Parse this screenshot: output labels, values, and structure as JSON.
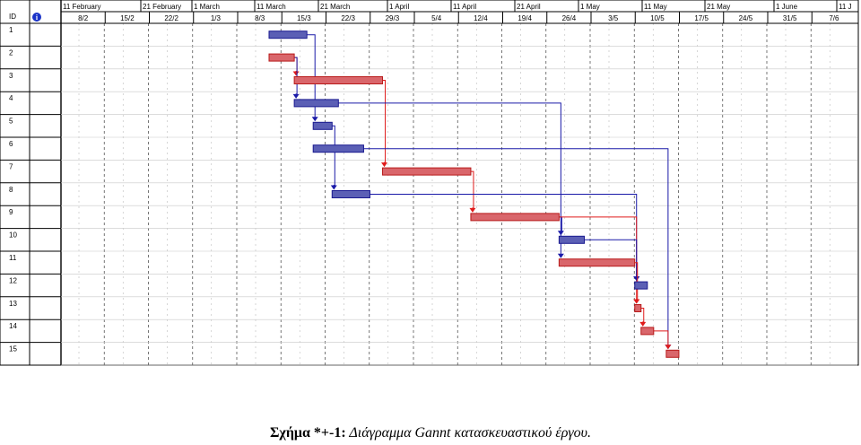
{
  "chart_data": {
    "type": "gantt",
    "columns": {
      "id": "ID",
      "info_icon": "info-icon"
    },
    "top_tier": [
      "11 February",
      "21 February",
      "1 March",
      "11 March",
      "21 March",
      "1 April",
      "11 April",
      "21 April",
      "1 May",
      "11 May",
      "21 May",
      "1 June",
      "11 J"
    ],
    "bottom_tier": [
      "8/2",
      "15/2",
      "22/2",
      "1/3",
      "8/3",
      "15/3",
      "22/3",
      "29/3",
      "5/4",
      "12/4",
      "19/4",
      "26/4",
      "3/5",
      "10/5",
      "17/5",
      "24/5",
      "31/5",
      "7/6"
    ],
    "rows": [
      "1",
      "2",
      "3",
      "4",
      "5",
      "6",
      "7",
      "8",
      "9",
      "10",
      "11",
      "12",
      "13",
      "14",
      "15"
    ],
    "tasks": [
      {
        "id": 1,
        "start": "2004-03-08",
        "end": "2004-03-14",
        "critical": false
      },
      {
        "id": 2,
        "start": "2004-03-08",
        "end": "2004-03-12",
        "critical": true
      },
      {
        "id": 3,
        "start": "2004-03-12",
        "end": "2004-03-26",
        "critical": true
      },
      {
        "id": 4,
        "start": "2004-03-12",
        "end": "2004-03-19",
        "critical": false
      },
      {
        "id": 5,
        "start": "2004-03-15",
        "end": "2004-03-18",
        "critical": false
      },
      {
        "id": 6,
        "start": "2004-03-15",
        "end": "2004-03-23",
        "critical": false
      },
      {
        "id": 7,
        "start": "2004-03-26",
        "end": "2004-04-09",
        "critical": true
      },
      {
        "id": 8,
        "start": "2004-03-18",
        "end": "2004-03-24",
        "critical": false
      },
      {
        "id": 9,
        "start": "2004-04-09",
        "end": "2004-04-23",
        "critical": true
      },
      {
        "id": 10,
        "start": "2004-04-23",
        "end": "2004-04-27",
        "critical": false
      },
      {
        "id": 11,
        "start": "2004-04-23",
        "end": "2004-05-05",
        "critical": true
      },
      {
        "id": 12,
        "start": "2004-05-05",
        "end": "2004-05-07",
        "critical": false
      },
      {
        "id": 13,
        "start": "2004-05-05",
        "end": "2004-05-06",
        "critical": true
      },
      {
        "id": 14,
        "start": "2004-05-06",
        "end": "2004-05-08",
        "critical": true
      },
      {
        "id": 15,
        "start": "2004-05-10",
        "end": "2004-05-12",
        "critical": true
      }
    ],
    "links": [
      [
        1,
        5
      ],
      [
        2,
        3
      ],
      [
        2,
        4
      ],
      [
        3,
        7
      ],
      [
        4,
        11
      ],
      [
        5,
        8
      ],
      [
        6,
        15
      ],
      [
        7,
        9
      ],
      [
        8,
        12
      ],
      [
        9,
        10
      ],
      [
        9,
        13
      ],
      [
        10,
        12
      ],
      [
        11,
        13
      ],
      [
        13,
        14
      ],
      [
        14,
        15
      ]
    ],
    "colors": {
      "normal": "#5b5fb5",
      "critical": "#d9666b",
      "normal_line": "#1a1aa8",
      "critical_line": "#e01b1b"
    }
  },
  "caption": {
    "label": "Σχήμα *+-1",
    "separator": ":",
    "text": " Διάγραμμα Gannt κατασκευαστικού έργου."
  }
}
